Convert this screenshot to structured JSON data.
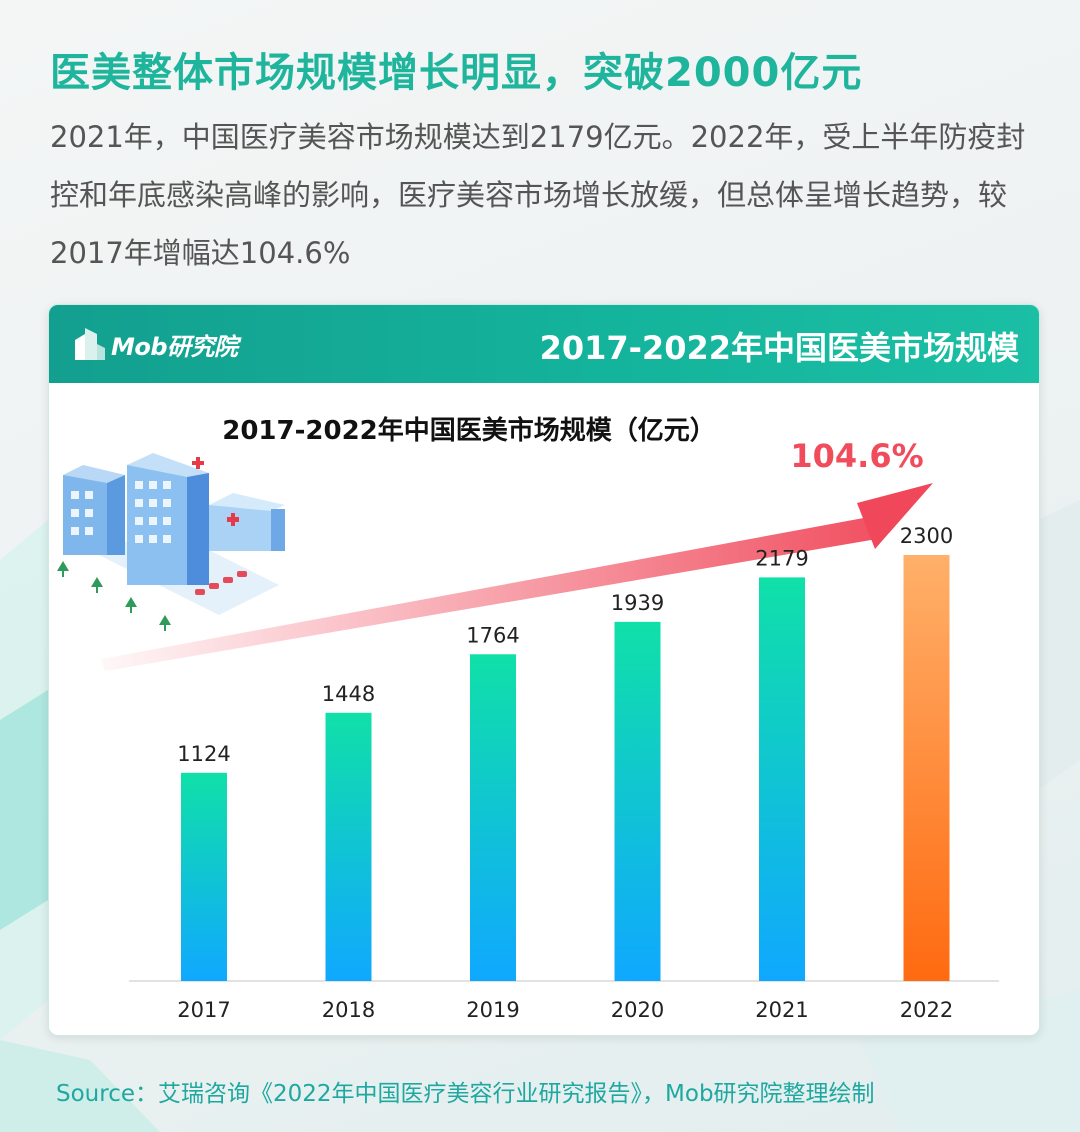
{
  "headline": "医美整体市场规模增长明显，突破2000亿元",
  "intro": "2021年，中国医疗美容市场规模达到2179亿元。2022年，受上半年防疫封控和年底感染高峰的影响，医疗美容市场增长放缓，但总体呈增长趋势，较2017年增幅达104.6%",
  "card": {
    "brand": "Mob研究院",
    "brand_icon": "building-logo-icon",
    "title": "2017-2022年中国医美市场规模"
  },
  "chart_data": {
    "type": "bar",
    "title": "2017-2022年中国医美市场规模（亿元）",
    "categories": [
      "2017",
      "2018",
      "2019",
      "2020",
      "2021",
      "2022"
    ],
    "values": [
      1124,
      1448,
      1764,
      1939,
      2179,
      2300
    ],
    "ylim": [
      0,
      2300
    ],
    "grid": false,
    "annotation": "104.6%",
    "colors": {
      "bar_top": "#10e0a8",
      "bar_bottom": "#10a8ff",
      "highlight_top": "#ffb06a",
      "highlight_bottom": "#ff6a10",
      "arrow": "#f0485a",
      "annotation": "#f04c5c"
    }
  },
  "illustration_icon": "hospital-buildings-icon",
  "source": "Source：艾瑞咨询《2022年中国医疗美容行业研究报告》，Mob研究院整理绘制"
}
